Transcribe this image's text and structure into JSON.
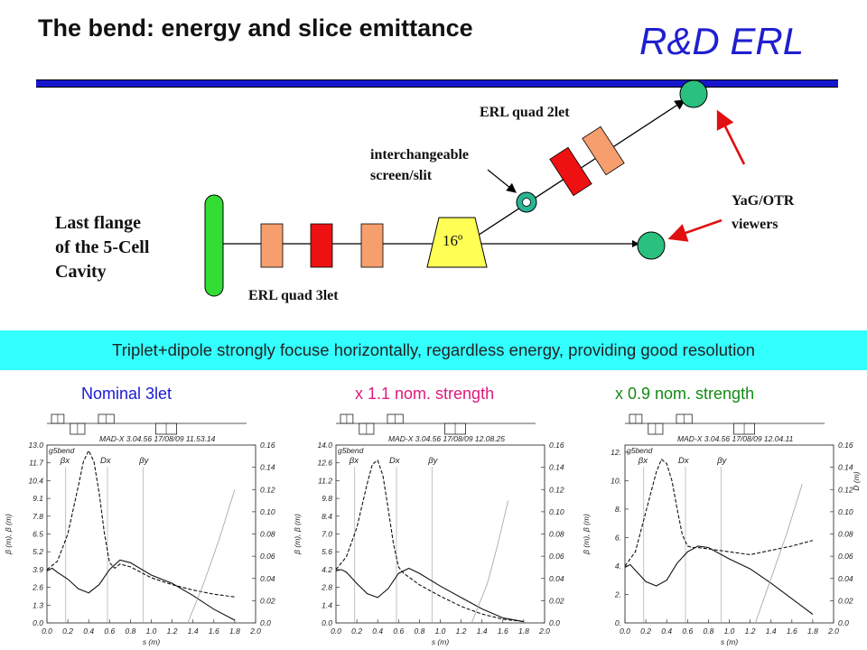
{
  "header": {
    "title": "The bend: energy and slice emittance",
    "brand": "R&D ERL"
  },
  "diagram": {
    "flange_label_line1": "Last flange",
    "flange_label_line2": "of the 5-Cell",
    "flange_label_line3": "Cavity",
    "quad3let_label": "ERL quad 3let",
    "quad2let_label": "ERL quad 2let",
    "dipole_angle": "16º",
    "screen_label_line1": "interchangeable",
    "screen_label_line2": "screen/slit",
    "viewers_label_line1": "YaG/OTR",
    "viewers_label_line2": "viewers"
  },
  "banner": {
    "text": "Triplet+dipole strongly focuse horizontally, regardless energy, providing good resolution"
  },
  "captions": [
    {
      "text": "Nominal 3let",
      "color": "#1a1ad6"
    },
    {
      "text": "x 1.1 nom. strength",
      "color": "#e0197a"
    },
    {
      "text": "x 0.9 nom. strength",
      "color": "#138a13"
    }
  ],
  "chart_data": [
    {
      "type": "line",
      "header_left": "g5bend",
      "header_right": "MAD-X 3.04.56 17/08/09 11.53.14",
      "xlabel": "s (m)",
      "ylabel_left": "β (m), β (m)",
      "ylabel_right": "D (m)",
      "xticks": [
        "0.0",
        "0.2",
        "0.4",
        "0.6",
        "0.8",
        "1.0",
        "1.2",
        "1.4",
        "1.6",
        "1.8",
        "2.0"
      ],
      "yticks_left": [
        "0.0",
        "1.3",
        "2.6",
        "3.9",
        "5.2",
        "6.5",
        "7.8",
        "9.1",
        "10.4",
        "11.7",
        "13.0"
      ],
      "yticks_right": [
        "0.0",
        "0.02",
        "0.04",
        "0.06",
        "0.08",
        "0.10",
        "0.12",
        "0.14",
        "0.16"
      ],
      "xlim": [
        0,
        2.0
      ],
      "ylim_left": [
        0,
        13.0
      ],
      "ylim_right": [
        0,
        0.16
      ],
      "legend": [
        "βx",
        "Dx",
        "βy"
      ],
      "series": [
        {
          "name": "βx",
          "style": "dashed",
          "x": [
            0.0,
            0.1,
            0.2,
            0.3,
            0.35,
            0.4,
            0.45,
            0.5,
            0.55,
            0.6,
            0.65,
            0.7,
            0.8,
            1.0,
            1.2,
            1.4,
            1.6,
            1.8
          ],
          "y": [
            3.9,
            4.5,
            6.5,
            10.0,
            11.8,
            12.6,
            11.8,
            9.5,
            6.6,
            4.4,
            4.0,
            4.3,
            4.1,
            3.3,
            2.8,
            2.4,
            2.1,
            1.9
          ]
        },
        {
          "name": "βy",
          "style": "solid",
          "x": [
            0.0,
            0.05,
            0.1,
            0.2,
            0.3,
            0.4,
            0.5,
            0.6,
            0.7,
            0.8,
            1.0,
            1.2,
            1.4,
            1.6,
            1.8
          ],
          "y": [
            3.8,
            4.0,
            3.7,
            3.2,
            2.5,
            2.2,
            2.8,
            3.9,
            4.6,
            4.4,
            3.5,
            2.9,
            2.0,
            1.0,
            0.2
          ]
        },
        {
          "name": "Dx",
          "style": "dotted",
          "x": [
            1.35,
            1.5,
            1.65,
            1.8
          ],
          "y": [
            0.0,
            0.035,
            0.075,
            0.12
          ]
        }
      ],
      "markers_x": [
        0.18,
        0.58,
        0.92
      ]
    },
    {
      "type": "line",
      "header_left": "g5bend",
      "header_right": "MAD-X 3.04.56 17/08/09 12.08.25",
      "xlabel": "s (m)",
      "ylabel_left": "β (m), β (m)",
      "ylabel_right": "D (m)",
      "xticks": [
        "0.0",
        "0.2",
        "0.4",
        "0.6",
        "0.8",
        "1.0",
        "1.2",
        "1.4",
        "1.6",
        "1.8",
        "2.0"
      ],
      "yticks_left": [
        "0.0",
        "1.4",
        "2.8",
        "4.2",
        "5.6",
        "7.0",
        "8.4",
        "9.8",
        "11.2",
        "12.6",
        "14.0"
      ],
      "yticks_right": [
        "0.0",
        "0.02",
        "0.04",
        "0.06",
        "0.08",
        "0.10",
        "0.12",
        "0.14",
        "0.16"
      ],
      "xlim": [
        0,
        2.0
      ],
      "ylim_left": [
        0,
        14.0
      ],
      "ylim_right": [
        0,
        0.16
      ],
      "legend": [
        "βx",
        "Dx",
        "βy"
      ],
      "series": [
        {
          "name": "βx",
          "style": "dashed",
          "x": [
            0.0,
            0.1,
            0.2,
            0.3,
            0.35,
            0.4,
            0.45,
            0.5,
            0.55,
            0.6,
            0.65,
            0.7,
            0.8,
            1.0,
            1.2,
            1.4,
            1.6,
            1.8
          ],
          "y": [
            4.2,
            5.2,
            7.5,
            11.0,
            12.5,
            12.8,
            11.6,
            9.0,
            6.3,
            4.4,
            3.9,
            3.6,
            3.0,
            2.1,
            1.3,
            0.7,
            0.3,
            0.1
          ]
        },
        {
          "name": "βy",
          "style": "solid",
          "x": [
            0.0,
            0.05,
            0.1,
            0.2,
            0.3,
            0.4,
            0.5,
            0.6,
            0.7,
            0.8,
            1.0,
            1.2,
            1.4,
            1.6,
            1.8
          ],
          "y": [
            4.1,
            4.2,
            4.0,
            3.1,
            2.3,
            2.0,
            2.7,
            3.9,
            4.3,
            3.9,
            2.9,
            2.0,
            1.1,
            0.4,
            0.1
          ]
        },
        {
          "name": "Dx",
          "style": "dotted",
          "x": [
            1.3,
            1.45,
            1.55,
            1.65
          ],
          "y": [
            0.0,
            0.035,
            0.07,
            0.11
          ]
        }
      ],
      "markers_x": [
        0.18,
        0.58,
        0.92
      ]
    },
    {
      "type": "line",
      "header_left": "g5bend",
      "header_right": "MAD-X 3.04.56 17/08/09 12.04.11",
      "xlabel": "s (m)",
      "ylabel_left": "β (m), β (m)",
      "ylabel_right": "D (m)",
      "xticks": [
        "0.0",
        "0.2",
        "0.4",
        "0.6",
        "0.8",
        "1.0",
        "1.2",
        "1.4",
        "1.6",
        "1.8",
        "2.0"
      ],
      "yticks_left": [
        "0.",
        "2.",
        "4.",
        "6.",
        "8.",
        "10.",
        "12."
      ],
      "yticks_right": [
        "0.0",
        "0.02",
        "0.04",
        "0.06",
        "0.08",
        "0.10",
        "0.12",
        "0.14",
        "0.16"
      ],
      "xlim": [
        0,
        2.0
      ],
      "ylim_left": [
        0,
        12.5
      ],
      "ylim_right": [
        0,
        0.16
      ],
      "legend": [
        "βx",
        "Dx",
        "βy"
      ],
      "series": [
        {
          "name": "βx",
          "style": "dashed",
          "x": [
            0.0,
            0.1,
            0.2,
            0.3,
            0.35,
            0.4,
            0.45,
            0.5,
            0.55,
            0.6,
            0.65,
            0.7,
            0.8,
            1.0,
            1.2,
            1.4,
            1.6,
            1.8
          ],
          "y": [
            4.0,
            5.0,
            7.8,
            10.6,
            11.5,
            11.2,
            10.0,
            8.0,
            6.2,
            5.4,
            5.3,
            5.3,
            5.2,
            5.0,
            4.8,
            5.1,
            5.4,
            5.8
          ]
        },
        {
          "name": "βy",
          "style": "solid",
          "x": [
            0.0,
            0.05,
            0.1,
            0.2,
            0.3,
            0.4,
            0.5,
            0.6,
            0.7,
            0.8,
            1.0,
            1.2,
            1.4,
            1.6,
            1.8
          ],
          "y": [
            3.9,
            4.1,
            3.7,
            2.9,
            2.6,
            3.0,
            4.2,
            5.0,
            5.4,
            5.3,
            4.5,
            3.8,
            2.8,
            1.7,
            0.6
          ]
        },
        {
          "name": "Dx",
          "style": "dotted",
          "x": [
            1.25,
            1.4,
            1.55,
            1.7
          ],
          "y": [
            0.0,
            0.04,
            0.08,
            0.125
          ]
        }
      ],
      "markers_x": [
        0.18,
        0.58,
        0.92
      ]
    }
  ]
}
